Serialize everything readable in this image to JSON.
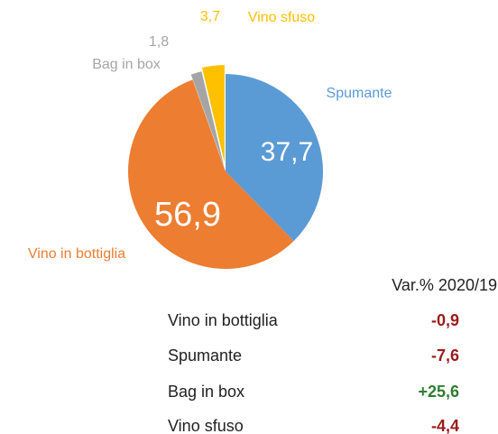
{
  "chart_data": {
    "type": "pie",
    "categories": [
      "Spumante",
      "Vino in bottiglia",
      "Bag in box",
      "Vino sfuso"
    ],
    "values": [
      37.7,
      56.9,
      1.8,
      3.7
    ],
    "value_labels": [
      "37,7",
      "56,9",
      "1,8",
      "3,7"
    ],
    "colors": [
      "#5b9bd5",
      "#ed7d31",
      "#a5a5a5",
      "#ffc000"
    ]
  },
  "table": {
    "header": "Var.% 2020/19",
    "rows": [
      {
        "name": "Vino in bottiglia",
        "value": -0.9,
        "label": "-0,9",
        "color": "#9b1b1b"
      },
      {
        "name": "Spumante",
        "value": -7.6,
        "label": "-7,6",
        "color": "#9b1b1b"
      },
      {
        "name": "Bag in box",
        "value": 25.6,
        "label": "+25,6",
        "color": "#2e7d32"
      },
      {
        "name": "Vino sfuso",
        "value": -4.4,
        "label": "-4,4",
        "color": "#9b1b1b"
      }
    ]
  }
}
